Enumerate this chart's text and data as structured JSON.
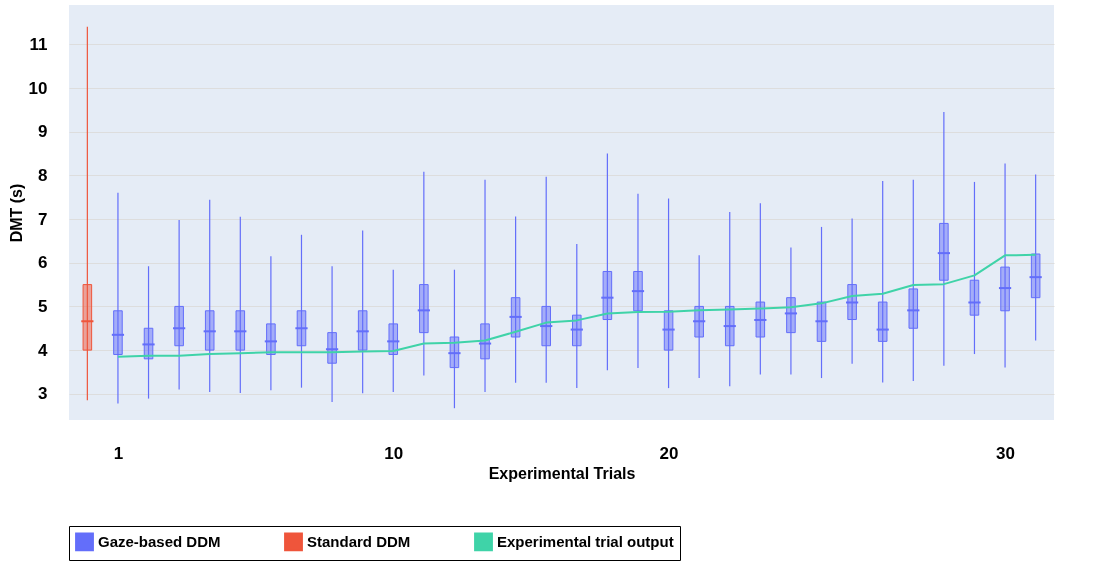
{
  "chart_data": {
    "type": "box",
    "xlabel": "Experimental Trials",
    "ylabel": "DMT (s)",
    "categories": [
      null,
      "1",
      null,
      null,
      null,
      null,
      null,
      null,
      null,
      null,
      "10",
      null,
      null,
      null,
      null,
      null,
      null,
      null,
      null,
      "20",
      null,
      null,
      null,
      null,
      null,
      null,
      null,
      null,
      null,
      null,
      "30",
      null
    ],
    "ylim": [
      2.4,
      11.9
    ],
    "yticks": [
      3,
      4,
      5,
      6,
      7,
      8,
      9,
      10,
      11
    ],
    "grid": "y",
    "legend": "bottom",
    "series": [
      {
        "name": "Gaze-based DDM",
        "color": "#636efa",
        "boxes": [
          null,
          {
            "low": 2.78,
            "q1": 3.9,
            "median": 4.35,
            "q3": 4.9,
            "high": 7.6
          },
          {
            "low": 2.89,
            "q1": 3.8,
            "median": 4.13,
            "q3": 4.5,
            "high": 5.92
          },
          {
            "low": 3.1,
            "q1": 4.1,
            "median": 4.5,
            "q3": 5.0,
            "high": 6.98
          },
          {
            "low": 3.04,
            "q1": 4.0,
            "median": 4.43,
            "q3": 4.9,
            "high": 7.44
          },
          {
            "low": 3.02,
            "q1": 4.0,
            "median": 4.43,
            "q3": 4.9,
            "high": 7.05
          },
          {
            "low": 3.08,
            "q1": 3.9,
            "median": 4.2,
            "q3": 4.6,
            "high": 6.15
          },
          {
            "low": 3.14,
            "q1": 4.1,
            "median": 4.5,
            "q3": 4.9,
            "high": 6.64
          },
          {
            "low": 2.81,
            "q1": 3.7,
            "median": 4.02,
            "q3": 4.4,
            "high": 5.92
          },
          {
            "low": 3.01,
            "q1": 4.0,
            "median": 4.43,
            "q3": 4.9,
            "high": 6.74
          },
          {
            "low": 3.04,
            "q1": 3.9,
            "median": 4.2,
            "q3": 4.6,
            "high": 5.84
          },
          {
            "low": 3.42,
            "q1": 4.4,
            "median": 4.91,
            "q3": 5.5,
            "high": 8.08
          },
          {
            "low": 2.67,
            "q1": 3.6,
            "median": 3.93,
            "q3": 4.3,
            "high": 5.84
          },
          {
            "low": 3.04,
            "q1": 3.8,
            "median": 4.15,
            "q3": 4.6,
            "high": 7.9
          },
          {
            "low": 3.25,
            "q1": 4.3,
            "median": 4.76,
            "q3": 5.2,
            "high": 7.06
          },
          {
            "low": 3.25,
            "q1": 4.1,
            "median": 4.55,
            "q3": 5.0,
            "high": 7.97
          },
          {
            "low": 3.13,
            "q1": 4.1,
            "median": 4.47,
            "q3": 4.8,
            "high": 6.43
          },
          {
            "low": 3.54,
            "q1": 4.7,
            "median": 5.2,
            "q3": 5.8,
            "high": 8.5
          },
          {
            "low": 3.59,
            "q1": 4.9,
            "median": 5.35,
            "q3": 5.8,
            "high": 7.58
          },
          {
            "low": 3.13,
            "q1": 4.0,
            "median": 4.47,
            "q3": 4.9,
            "high": 7.47
          },
          {
            "low": 3.36,
            "q1": 4.3,
            "median": 4.66,
            "q3": 5.0,
            "high": 6.17
          },
          {
            "low": 3.17,
            "q1": 4.1,
            "median": 4.55,
            "q3": 5.0,
            "high": 7.16
          },
          {
            "low": 3.44,
            "q1": 4.3,
            "median": 4.69,
            "q3": 5.1,
            "high": 7.36
          },
          {
            "low": 3.44,
            "q1": 4.4,
            "median": 4.84,
            "q3": 5.2,
            "high": 6.35
          },
          {
            "low": 3.36,
            "q1": 4.2,
            "median": 4.66,
            "q3": 5.1,
            "high": 6.82
          },
          {
            "low": 3.69,
            "q1": 4.7,
            "median": 5.09,
            "q3": 5.5,
            "high": 7.01
          },
          {
            "low": 3.26,
            "q1": 4.2,
            "median": 4.47,
            "q3": 5.1,
            "high": 7.87
          },
          {
            "low": 3.29,
            "q1": 4.5,
            "median": 4.91,
            "q3": 5.4,
            "high": 7.9
          },
          {
            "low": 3.64,
            "q1": 5.6,
            "median": 6.22,
            "q3": 6.9,
            "high": 9.45
          },
          {
            "low": 3.91,
            "q1": 4.8,
            "median": 5.09,
            "q3": 5.6,
            "high": 7.85
          },
          {
            "low": 3.6,
            "q1": 4.9,
            "median": 5.42,
            "q3": 5.9,
            "high": 8.27
          },
          {
            "low": 4.22,
            "q1": 5.2,
            "median": 5.67,
            "q3": 6.2,
            "high": 8.02
          }
        ]
      },
      {
        "name": "Standard DDM",
        "color": "#ef553b",
        "boxes": [
          {
            "low": 2.85,
            "q1": 4.0,
            "median": 4.66,
            "q3": 5.5,
            "high": 11.4
          },
          null,
          null,
          null,
          null,
          null,
          null,
          null,
          null,
          null,
          null,
          null,
          null,
          null,
          null,
          null,
          null,
          null,
          null,
          null,
          null,
          null,
          null,
          null,
          null,
          null,
          null,
          null,
          null,
          null,
          null,
          null
        ]
      },
      {
        "name": "Experimental trial output",
        "type": "line",
        "color": "#3fd3a8",
        "values": [
          null,
          3.85,
          3.87,
          3.87,
          3.91,
          3.93,
          3.95,
          3.95,
          3.95,
          3.97,
          3.98,
          4.15,
          4.17,
          4.22,
          4.42,
          4.63,
          4.68,
          4.84,
          4.87,
          4.88,
          4.91,
          4.93,
          4.95,
          4.98,
          5.07,
          5.24,
          5.29,
          5.49,
          5.51,
          5.71,
          6.17,
          6.18
        ]
      }
    ]
  }
}
